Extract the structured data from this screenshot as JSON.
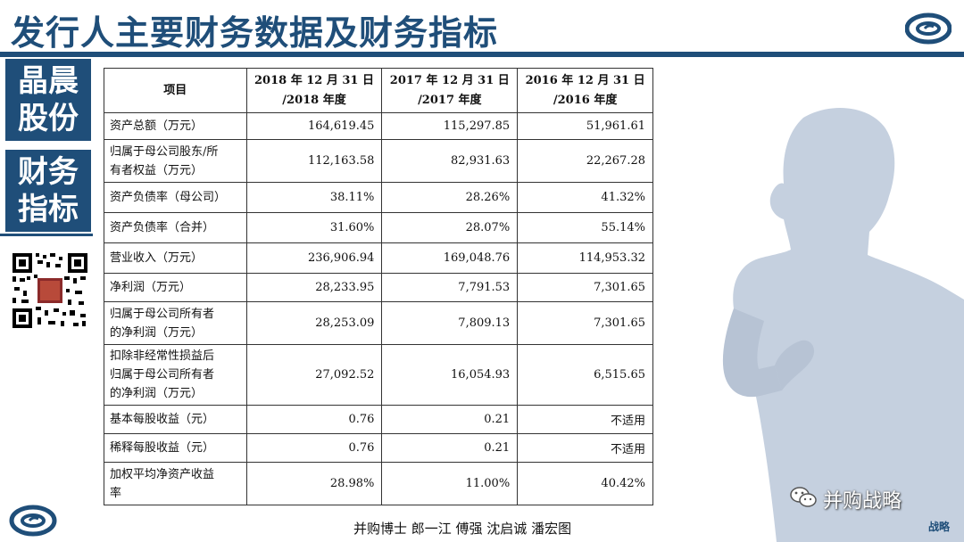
{
  "header": {
    "title": "发行人主要财务数据及财务指标"
  },
  "sidebar": {
    "box1_line1": "晶晨",
    "box1_line2": "股份",
    "box2_line1": "财务",
    "box2_line2": "指标"
  },
  "table": {
    "headers": [
      {
        "line1": "项目",
        "line2": ""
      },
      {
        "line1": "2018 年 12 月 31 日",
        "line2": "/2018 年度"
      },
      {
        "line1": "2017 年 12 月 31 日",
        "line2": "/2017 年度"
      },
      {
        "line1": "2016 年 12 月 31 日",
        "line2": "/2016 年度"
      }
    ],
    "rows": [
      {
        "label": "资产总额（万元）",
        "v2018": "164,619.45",
        "v2017": "115,297.85",
        "v2016": "51,961.61"
      },
      {
        "label": "归属于母公司股东/所\n有者权益（万元）",
        "v2018": "112,163.58",
        "v2017": "82,931.63",
        "v2016": "22,267.28"
      },
      {
        "label": "资产负债率（母公司）",
        "v2018": "38.11%",
        "v2017": "28.26%",
        "v2016": "41.32%"
      },
      {
        "label": "资产负债率（合并）",
        "v2018": "31.60%",
        "v2017": "28.07%",
        "v2016": "55.14%"
      },
      {
        "label": "营业收入（万元）",
        "v2018": "236,906.94",
        "v2017": "169,048.76",
        "v2016": "114,953.32"
      },
      {
        "label": "净利润（万元）",
        "v2018": "28,233.95",
        "v2017": "7,791.53",
        "v2016": "7,301.65"
      },
      {
        "label": "归属于母公司所有者\n的净利润（万元）",
        "v2018": "28,253.09",
        "v2017": "7,809.13",
        "v2016": "7,301.65"
      },
      {
        "label": "扣除非经常性损益后\n归属于母公司所有者\n的净利润（万元）",
        "v2018": "27,092.52",
        "v2017": "16,054.93",
        "v2016": "6,515.65"
      },
      {
        "label": "基本每股收益（元）",
        "v2018": "0.76",
        "v2017": "0.21",
        "v2016": "不适用"
      },
      {
        "label": "稀释每股收益（元）",
        "v2018": "0.76",
        "v2017": "0.21",
        "v2016": "不适用"
      },
      {
        "label": "加权平均净资产收益\n率",
        "v2018": "28.98%",
        "v2017": "11.00%",
        "v2016": "40.42%"
      }
    ]
  },
  "watermark": {
    "text": "并购战略",
    "corner": "战略"
  },
  "caption": "并购博士 郎一江 傅强 沈启诚 潘宏图",
  "colors": {
    "brand": "#1f4e79"
  }
}
